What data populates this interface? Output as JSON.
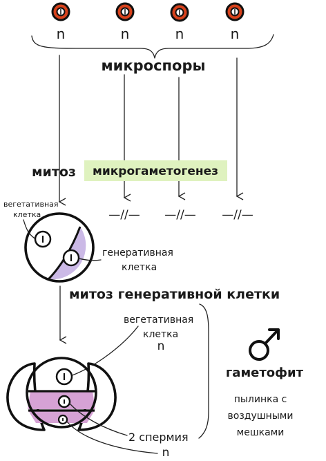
{
  "labels": {
    "haploid": "n",
    "microspores": "микроспоры",
    "mitosis": "митоз",
    "microgametogenesis": "микрогаметогенез",
    "vegetative_cell_1": "вегетативная",
    "vegetative_cell_2": "клетка",
    "generative_cell_1": "генеративная",
    "generative_cell_2": "клетка",
    "generative_mitosis": "митоз генеративной клетки",
    "gametophyte": "гаметофит",
    "pollen_1": "пылинка с",
    "pollen_2": "воздушными",
    "pollen_3": "мешками",
    "sperm": "2 спермия",
    "broken_line": "—//—",
    "male_symbol": "♂"
  },
  "colors": {
    "highlight_green": "#dff2bf",
    "generative_purple": "#cbb9e6",
    "pollen_pink": "#d6a2d5",
    "nucleus_red": "#d8421c",
    "outline": "#111111"
  }
}
